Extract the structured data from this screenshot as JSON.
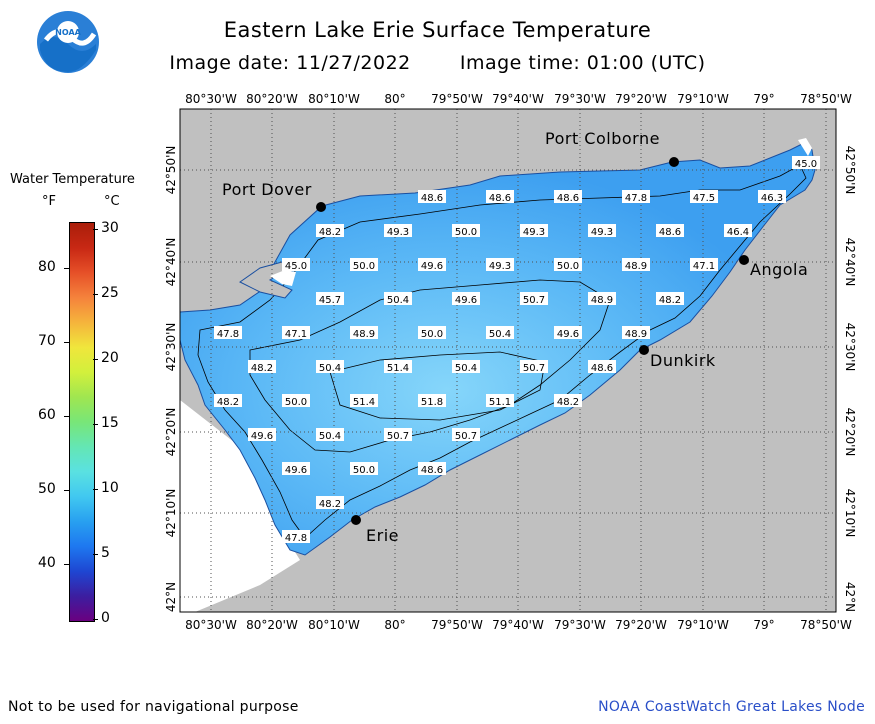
{
  "header": {
    "title": "Eastern Lake Erie Surface Temperature",
    "image_date_label": "Image date:",
    "image_date": "11/27/2022",
    "image_time_label": "Image time:",
    "image_time": "01:00 (UTC)"
  },
  "logo": {
    "text": "NOAA"
  },
  "legend": {
    "title": "Water Temperature",
    "unit_f": "°F",
    "unit_c": "°C",
    "f_ticks": [
      "80",
      "70",
      "60",
      "50",
      "40"
    ],
    "c_ticks": [
      "30",
      "25",
      "20",
      "15",
      "10",
      "5",
      "0"
    ],
    "colors": [
      "#6a0080",
      "#3c1ea0",
      "#1e46d2",
      "#1e78f0",
      "#28a0f0",
      "#41c8f0",
      "#5ae1e1",
      "#64e6b4",
      "#78e678",
      "#a0e650",
      "#d2f03c",
      "#f0e63c",
      "#f5b43c",
      "#f5823c",
      "#e65028",
      "#c82814",
      "#aa1e0a"
    ]
  },
  "map": {
    "lon_labels": [
      "80°30'W",
      "80°20'W",
      "80°10'W",
      "80°",
      "79°50'W",
      "79°40'W",
      "79°30'W",
      "79°20'W",
      "79°10'W",
      "79°",
      "78°50'W"
    ],
    "lat_labels": [
      "42°50'N",
      "42°40'N",
      "42°30'N",
      "42°20'N",
      "42°10'N",
      "42°N"
    ],
    "colors": {
      "land": "#c0c0c0",
      "water_warm": "#78cdf8",
      "water_cool": "#3a9ae8",
      "grid": "#505050"
    },
    "cities": [
      {
        "name": "Port Colborne"
      },
      {
        "name": "Port Dover"
      },
      {
        "name": "Angola"
      },
      {
        "name": "Dunkirk"
      },
      {
        "name": "Erie"
      }
    ],
    "temps": [
      {
        "value": "45.0"
      },
      {
        "value": "48.6"
      },
      {
        "value": "48.6"
      },
      {
        "value": "48.6"
      },
      {
        "value": "47.8"
      },
      {
        "value": "47.5"
      },
      {
        "value": "46.3"
      },
      {
        "value": "48.2"
      },
      {
        "value": "49.3"
      },
      {
        "value": "50.0"
      },
      {
        "value": "49.3"
      },
      {
        "value": "49.3"
      },
      {
        "value": "48.6"
      },
      {
        "value": "46.4"
      },
      {
        "value": "45.0"
      },
      {
        "value": "50.0"
      },
      {
        "value": "49.6"
      },
      {
        "value": "49.3"
      },
      {
        "value": "50.0"
      },
      {
        "value": "48.9"
      },
      {
        "value": "47.1"
      },
      {
        "value": "45.7"
      },
      {
        "value": "50.4"
      },
      {
        "value": "49.6"
      },
      {
        "value": "50.7"
      },
      {
        "value": "48.9"
      },
      {
        "value": "48.2"
      },
      {
        "value": "47.8"
      },
      {
        "value": "47.1"
      },
      {
        "value": "48.9"
      },
      {
        "value": "50.0"
      },
      {
        "value": "50.4"
      },
      {
        "value": "49.6"
      },
      {
        "value": "48.9"
      },
      {
        "value": "48.2"
      },
      {
        "value": "50.4"
      },
      {
        "value": "51.4"
      },
      {
        "value": "50.4"
      },
      {
        "value": "50.7"
      },
      {
        "value": "48.6"
      },
      {
        "value": "48.2"
      },
      {
        "value": "50.0"
      },
      {
        "value": "51.4"
      },
      {
        "value": "51.8"
      },
      {
        "value": "51.1"
      },
      {
        "value": "48.2"
      },
      {
        "value": "49.6"
      },
      {
        "value": "50.4"
      },
      {
        "value": "50.7"
      },
      {
        "value": "50.7"
      },
      {
        "value": "49.6"
      },
      {
        "value": "50.0"
      },
      {
        "value": "48.6"
      },
      {
        "value": "48.2"
      },
      {
        "value": "47.8"
      }
    ]
  },
  "footer": {
    "disclaimer": "Not to be used for navigational purpose",
    "credit": "NOAA CoastWatch Great Lakes Node"
  }
}
